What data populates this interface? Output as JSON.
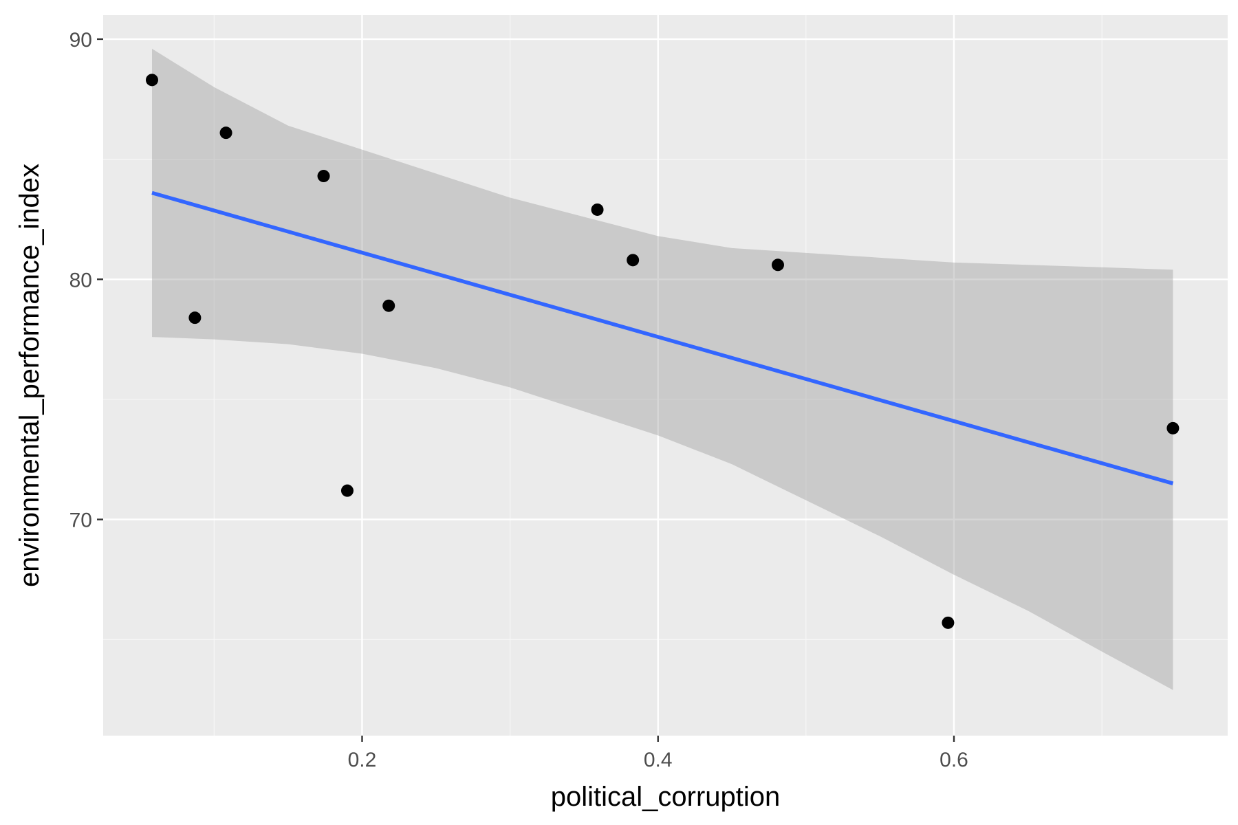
{
  "chart_data": {
    "type": "scatter",
    "xlabel": "political_corruption",
    "ylabel": "environmental_performance_index",
    "xlim": [
      0.025,
      0.785
    ],
    "ylim": [
      61.0,
      91.0
    ],
    "x_ticks": [
      0.2,
      0.4,
      0.6
    ],
    "x_tick_labels": [
      "0.2",
      "0.4",
      "0.6"
    ],
    "x_minor_ticks": [
      0.1,
      0.3,
      0.5,
      0.7
    ],
    "y_ticks": [
      70,
      80,
      90
    ],
    "y_tick_labels": [
      "70",
      "80",
      "90"
    ],
    "y_minor_ticks": [
      65,
      75,
      85
    ],
    "grid": true,
    "points": [
      {
        "x": 0.058,
        "y": 88.3
      },
      {
        "x": 0.087,
        "y": 78.4
      },
      {
        "x": 0.108,
        "y": 86.1
      },
      {
        "x": 0.174,
        "y": 84.3
      },
      {
        "x": 0.19,
        "y": 71.2
      },
      {
        "x": 0.218,
        "y": 78.9
      },
      {
        "x": 0.359,
        "y": 82.9
      },
      {
        "x": 0.383,
        "y": 80.8
      },
      {
        "x": 0.481,
        "y": 80.6
      },
      {
        "x": 0.596,
        "y": 65.7
      },
      {
        "x": 0.748,
        "y": 73.8
      }
    ],
    "fit_line": {
      "x": [
        0.058,
        0.748
      ],
      "y": [
        83.6,
        71.5
      ]
    },
    "confidence_band": {
      "x": [
        0.058,
        0.1,
        0.15,
        0.2,
        0.25,
        0.3,
        0.35,
        0.4,
        0.45,
        0.5,
        0.55,
        0.6,
        0.65,
        0.7,
        0.748
      ],
      "upper": [
        89.6,
        88.0,
        86.4,
        85.4,
        84.4,
        83.4,
        82.6,
        81.8,
        81.3,
        81.1,
        80.9,
        80.7,
        80.6,
        80.5,
        80.4
      ],
      "lower": [
        77.6,
        77.5,
        77.3,
        76.9,
        76.3,
        75.5,
        74.5,
        73.5,
        72.3,
        70.8,
        69.3,
        67.7,
        66.2,
        64.5,
        62.9
      ]
    },
    "colors": {
      "panel_background": "#ebebeb",
      "grid_major": "#ffffff",
      "grid_minor": "#f7f7f7",
      "point": "#000000",
      "fit_line": "#3366ff",
      "band_fill": "#999999",
      "tick_label": "#4d4d4d",
      "tick_mark": "#333333",
      "axis_title": "#000000"
    }
  }
}
